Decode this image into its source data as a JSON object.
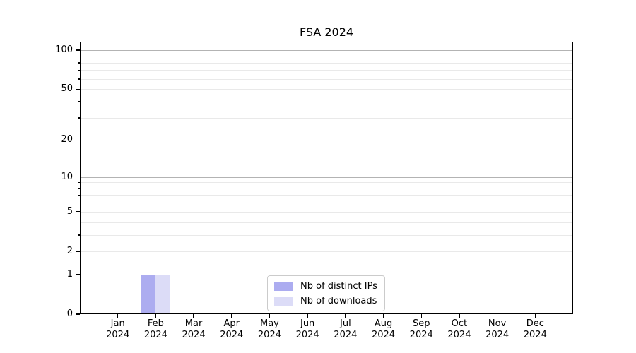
{
  "figure": {
    "background": "#ffffff"
  },
  "chart_data": {
    "type": "bar",
    "title": "FSA 2024",
    "x_tick_months": [
      "Jan",
      "Feb",
      "Mar",
      "Apr",
      "May",
      "Jun",
      "Jul",
      "Aug",
      "Sep",
      "Oct",
      "Nov",
      "Dec"
    ],
    "x_tick_year": "2024",
    "y_tick_labels": [
      "0",
      "1",
      "2",
      "5",
      "10",
      "20",
      "50",
      "100"
    ],
    "y_tick_values": [
      0,
      1,
      2,
      5,
      10,
      20,
      50,
      100
    ],
    "y_minor_tick_values": [
      3,
      4,
      6,
      7,
      8,
      9,
      30,
      40,
      60,
      70,
      80,
      90
    ],
    "y_gridlines_strong": [
      1,
      10,
      100
    ],
    "y_gridlines_faint": [
      2,
      5,
      20,
      50,
      3,
      4,
      6,
      7,
      8,
      9,
      30,
      40,
      60,
      70,
      80,
      90
    ],
    "y_scale": "log1p",
    "ylim": [
      0,
      116
    ],
    "grid": "both",
    "series": [
      {
        "name": "Nb of distinct IPs",
        "color": "#acacf0",
        "values": [
          0,
          1,
          0,
          0,
          0,
          0,
          0,
          0,
          0,
          0,
          0,
          0
        ]
      },
      {
        "name": "Nb of downloads",
        "color": "#dcdcf7",
        "values": [
          0,
          1,
          0,
          0,
          0,
          0,
          0,
          0,
          0,
          0,
          0,
          0
        ]
      }
    ],
    "legend_position": "bottom-center"
  },
  "colors": {
    "grid_strong": "#b3b3b3",
    "grid_faint": "#e9e9e9",
    "spine": "#000000"
  }
}
